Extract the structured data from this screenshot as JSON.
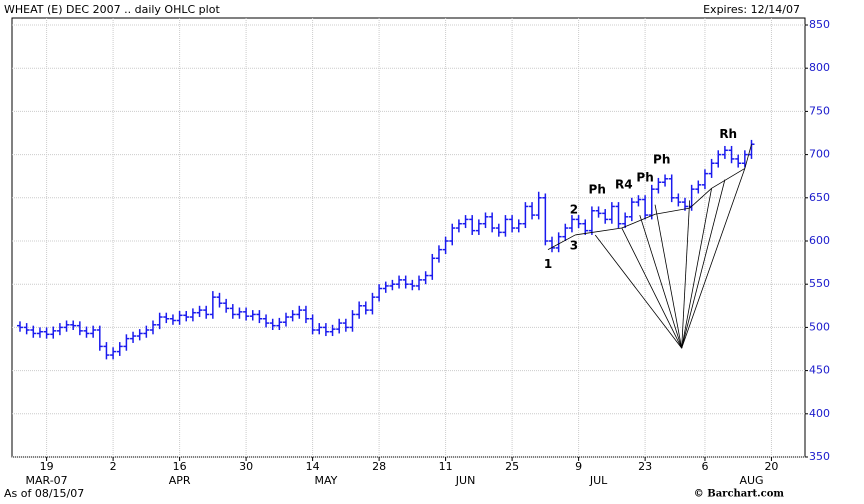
{
  "chart_data": {
    "type": "ohlc",
    "title": "WHEAT (E) DEC 2007 .. daily OHLC plot",
    "expires": "Expires: 12/14/07",
    "as_of": "As of 08/15/07",
    "source": "© Barchart.com",
    "color": "#1a1aee",
    "grid": true,
    "categories": [
      null,
      null,
      null,
      null,
      "19",
      null,
      null,
      null,
      null,
      null,
      null,
      null,
      null,
      null,
      "2",
      null,
      null,
      null,
      null,
      null,
      null,
      null,
      null,
      null,
      "16",
      null,
      null,
      null,
      null,
      null,
      null,
      null,
      null,
      null,
      "30",
      null,
      null,
      null,
      null,
      null,
      null,
      null,
      null,
      null,
      "14",
      null,
      null,
      null,
      null,
      null,
      null,
      null,
      null,
      null,
      "28",
      null,
      null,
      null,
      null,
      null,
      null,
      null,
      null,
      null,
      "11",
      null,
      null,
      null,
      null,
      null,
      null,
      null,
      null,
      null,
      "25",
      null,
      null,
      null,
      null,
      null,
      null,
      null,
      null,
      null,
      "9",
      null,
      null,
      null,
      null,
      null,
      null,
      null,
      null,
      null,
      "23",
      null,
      null,
      null,
      null,
      null,
      null,
      null,
      null,
      "6",
      null,
      null,
      null,
      null,
      null,
      null,
      null,
      null,
      null,
      "20",
      null,
      null
    ],
    "category_months": [
      null,
      null,
      null,
      null,
      "MAR-07",
      null,
      null,
      null,
      null,
      null,
      null,
      null,
      null,
      null,
      null,
      null,
      null,
      null,
      null,
      null,
      null,
      null,
      null,
      null,
      "APR",
      null,
      null,
      null,
      null,
      null,
      null,
      null,
      null,
      null,
      null,
      null,
      null,
      null,
      null,
      null,
      null,
      null,
      null,
      null,
      null,
      null,
      "MAY",
      null,
      null,
      null,
      null,
      null,
      null,
      null,
      null,
      null,
      null,
      null,
      null,
      null,
      null,
      null,
      null,
      null,
      null,
      null,
      null,
      "JUN",
      null,
      null,
      null,
      null,
      null,
      null,
      null,
      null,
      null,
      null,
      null,
      null,
      null,
      null,
      null,
      null,
      null,
      null,
      null,
      "JUL",
      null,
      null,
      null,
      null,
      null,
      null,
      null,
      null,
      null,
      null,
      null,
      null,
      null,
      null,
      null,
      null,
      null,
      null,
      null,
      null,
      null,
      null,
      "AUG",
      null,
      null,
      null,
      null,
      null
    ],
    "open": [
      502,
      500,
      497,
      493,
      495,
      492,
      496,
      500,
      503,
      502,
      496,
      493,
      497,
      478,
      468,
      472,
      478,
      487,
      490,
      493,
      497,
      503,
      512,
      510,
      508,
      514,
      512,
      517,
      520,
      515,
      535,
      528,
      522,
      515,
      518,
      513,
      515,
      510,
      505,
      502,
      506,
      512,
      515,
      520,
      510,
      497,
      500,
      495,
      498,
      505,
      500,
      515,
      525,
      520,
      535,
      545,
      548,
      550,
      555,
      550,
      548,
      555,
      560,
      580,
      590,
      600,
      615,
      620,
      625,
      612,
      620,
      628,
      615,
      610,
      625,
      615,
      620,
      640,
      630,
      650,
      600,
      592,
      605,
      615,
      625,
      620,
      612,
      635,
      632,
      625,
      640,
      620,
      628,
      645,
      648,
      630,
      660,
      668,
      672,
      650,
      645,
      640,
      660,
      665,
      678,
      690,
      700,
      705,
      695,
      690,
      700,
      null,
      null,
      null,
      null,
      null
    ],
    "high": [
      507,
      505,
      502,
      500,
      500,
      501,
      505,
      508,
      508,
      507,
      501,
      502,
      502,
      483,
      477,
      483,
      492,
      495,
      498,
      502,
      508,
      517,
      517,
      515,
      519,
      519,
      522,
      525,
      525,
      542,
      540,
      533,
      527,
      523,
      523,
      520,
      520,
      515,
      510,
      511,
      517,
      520,
      525,
      525,
      515,
      505,
      505,
      503,
      510,
      510,
      520,
      530,
      530,
      540,
      550,
      553,
      555,
      560,
      560,
      555,
      560,
      565,
      585,
      595,
      605,
      620,
      625,
      630,
      630,
      625,
      633,
      633,
      620,
      630,
      630,
      625,
      645,
      645,
      657,
      655,
      605,
      610,
      620,
      630,
      630,
      625,
      640,
      640,
      637,
      645,
      645,
      633,
      650,
      653,
      653,
      665,
      673,
      677,
      677,
      655,
      650,
      665,
      670,
      683,
      695,
      705,
      710,
      710,
      700,
      705,
      717,
      null,
      null,
      null,
      null,
      null
    ],
    "low": [
      495,
      492,
      488,
      488,
      487,
      487,
      491,
      495,
      497,
      491,
      488,
      488,
      473,
      463,
      463,
      467,
      473,
      482,
      485,
      488,
      492,
      498,
      505,
      503,
      503,
      507,
      507,
      512,
      510,
      510,
      523,
      517,
      510,
      510,
      508,
      508,
      505,
      500,
      497,
      497,
      501,
      507,
      510,
      505,
      492,
      492,
      490,
      490,
      493,
      495,
      495,
      510,
      515,
      515,
      530,
      540,
      543,
      545,
      545,
      543,
      543,
      550,
      555,
      575,
      585,
      595,
      610,
      615,
      607,
      607,
      615,
      610,
      605,
      605,
      610,
      610,
      615,
      625,
      625,
      595,
      587,
      587,
      600,
      610,
      615,
      607,
      607,
      627,
      620,
      620,
      615,
      615,
      623,
      640,
      625,
      625,
      655,
      663,
      645,
      640,
      635,
      635,
      655,
      660,
      673,
      685,
      695,
      690,
      685,
      685,
      695,
      null,
      null,
      null,
      null,
      null
    ],
    "close": [
      500,
      497,
      493,
      495,
      492,
      496,
      500,
      503,
      502,
      496,
      493,
      497,
      478,
      468,
      472,
      478,
      487,
      490,
      493,
      497,
      503,
      512,
      510,
      508,
      514,
      512,
      517,
      520,
      515,
      535,
      528,
      522,
      515,
      518,
      513,
      515,
      510,
      505,
      502,
      506,
      512,
      515,
      520,
      510,
      497,
      500,
      495,
      498,
      505,
      500,
      515,
      525,
      520,
      535,
      545,
      548,
      550,
      555,
      550,
      548,
      555,
      560,
      580,
      590,
      600,
      615,
      620,
      625,
      612,
      620,
      628,
      615,
      610,
      625,
      615,
      620,
      640,
      630,
      650,
      600,
      592,
      605,
      615,
      625,
      620,
      612,
      635,
      632,
      625,
      640,
      620,
      628,
      645,
      648,
      630,
      660,
      668,
      672,
      650,
      645,
      640,
      660,
      665,
      678,
      690,
      700,
      705,
      695,
      690,
      700,
      712,
      null,
      null,
      null,
      null,
      null
    ],
    "ylim": [
      350,
      850
    ],
    "yticks": [
      350,
      400,
      450,
      500,
      550,
      600,
      650,
      700,
      750,
      800,
      850
    ],
    "annotations": [
      {
        "text": "1",
        "x": 79.4,
        "y": 573
      },
      {
        "text": "2",
        "x": 83.3,
        "y": 636
      },
      {
        "text": "3",
        "x": 83.3,
        "y": 594
      },
      {
        "text": "Ph",
        "x": 86.8,
        "y": 659
      },
      {
        "text": "R4",
        "x": 90.8,
        "y": 665
      },
      {
        "text": "Ph",
        "x": 94,
        "y": 673
      },
      {
        "text": "Ph",
        "x": 96.5,
        "y": 694
      },
      {
        "text": "Rh",
        "x": 106.5,
        "y": 723
      }
    ],
    "trendlines": [
      {
        "from": [
          99.5,
          476
        ],
        "to": [
          86.5,
          607
        ]
      },
      {
        "from": [
          99.5,
          476
        ],
        "to": [
          90.5,
          615
        ]
      },
      {
        "from": [
          99.5,
          476
        ],
        "to": [
          93.2,
          630
        ]
      },
      {
        "from": [
          99.5,
          476
        ],
        "to": [
          95.5,
          642
        ]
      },
      {
        "from": [
          99.5,
          476
        ],
        "to": [
          100.7,
          647
        ]
      },
      {
        "from": [
          99.5,
          476
        ],
        "to": [
          104,
          661
        ]
      },
      {
        "from": [
          99.5,
          476
        ],
        "to": [
          106,
          671
        ]
      },
      {
        "from": [
          99.5,
          476
        ],
        "to": [
          109,
          684
        ]
      },
      {
        "from": [
          79.4,
          590
        ],
        "to": [
          83.5,
          607
        ]
      },
      {
        "from": [
          83.5,
          607
        ],
        "to": [
          90.5,
          615
        ]
      },
      {
        "from": [
          90.5,
          615
        ],
        "to": [
          95.5,
          631
        ]
      },
      {
        "from": [
          95.5,
          631
        ],
        "to": [
          100.7,
          638
        ]
      },
      {
        "from": [
          100.7,
          638
        ],
        "to": [
          104,
          661
        ]
      },
      {
        "from": [
          104,
          661
        ],
        "to": [
          109,
          684
        ]
      },
      {
        "from": [
          109,
          684
        ],
        "to": [
          110,
          712
        ]
      }
    ]
  }
}
